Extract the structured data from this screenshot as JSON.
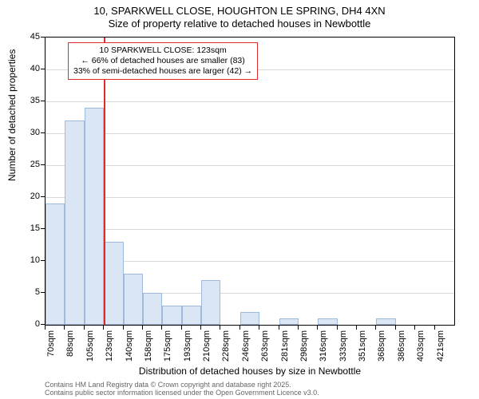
{
  "title_line1": "10, SPARKWELL CLOSE, HOUGHTON LE SPRING, DH4 4XN",
  "title_line2": "Size of property relative to detached houses in Newbottle",
  "chart": {
    "type": "histogram",
    "ylabel": "Number of detached properties",
    "xlabel": "Distribution of detached houses by size in Newbottle",
    "ylim": [
      0,
      45
    ],
    "ytick_step": 5,
    "yticks": [
      0,
      5,
      10,
      15,
      20,
      25,
      30,
      35,
      40,
      45
    ],
    "xlabels": [
      "70sqm",
      "88sqm",
      "105sqm",
      "123sqm",
      "140sqm",
      "158sqm",
      "175sqm",
      "193sqm",
      "210sqm",
      "228sqm",
      "246sqm",
      "263sqm",
      "281sqm",
      "298sqm",
      "316sqm",
      "333sqm",
      "351sqm",
      "368sqm",
      "386sqm",
      "403sqm",
      "421sqm"
    ],
    "values": [
      19,
      32,
      34,
      13,
      8,
      5,
      3,
      3,
      7,
      0,
      2,
      0,
      1,
      0,
      1,
      0,
      0,
      1,
      0,
      0,
      0
    ],
    "bar_fill": "#dbe6f5",
    "bar_stroke": "#9fb9da",
    "grid_color": "#d9d9d9",
    "background_color": "#ffffff",
    "axis_color": "#000000",
    "title_fontsize": 13,
    "label_fontsize": 12,
    "tick_fontsize": 11,
    "marker": {
      "x_index": 3,
      "color": "#e12b2b"
    },
    "annotation": {
      "line1": "10 SPARKWELL CLOSE: 123sqm",
      "line2": "← 66% of detached houses are smaller (83)",
      "line3": "33% of semi-detached houses are larger (42) →",
      "border_color": "#e12b2b",
      "fontsize": 10.5
    }
  },
  "footnote_line1": "Contains HM Land Registry data © Crown copyright and database right 2025.",
  "footnote_line2": "Contains public sector information licensed under the Open Government Licence v3.0."
}
